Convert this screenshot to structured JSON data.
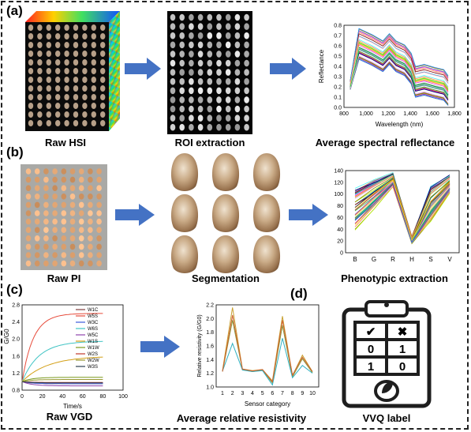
{
  "panels": {
    "a": "(a)",
    "b": "(b)",
    "c": "(c)",
    "d": "(d)"
  },
  "captions": {
    "raw_hsi": "Raw HSI",
    "roi_extraction": "ROI extraction",
    "avg_spectral": "Average spectral reflectance",
    "raw_pi": "Raw PI",
    "segmentation": "Segmentation",
    "phenotypic": "Phenotypic extraction",
    "raw_vgd": "Raw VGD",
    "avg_resistivity": "Average relative resistivity",
    "vvq_label": "VVQ label"
  },
  "spectral_chart": {
    "xlabel": "Wavelength (nm)",
    "ylabel": "Reflectance",
    "xticks": [
      "800",
      "1,000",
      "1,200",
      "1,400",
      "1,600",
      "1,800"
    ],
    "yticks": [
      "0.0",
      "0.1",
      "0.2",
      "0.3",
      "0.4",
      "0.5",
      "0.6",
      "0.7",
      "0.8"
    ]
  },
  "pheno_chart": {
    "xticks": [
      "B",
      "G",
      "R",
      "H",
      "S",
      "V"
    ],
    "yticks": [
      "0",
      "20",
      "40",
      "60",
      "80",
      "100",
      "120",
      "140"
    ]
  },
  "vgd_chart": {
    "xlabel": "Time/s",
    "ylabel": "G/G0",
    "xticks": [
      "0",
      "20",
      "40",
      "60",
      "80",
      "100"
    ],
    "yticks": [
      "0.8",
      "1.2",
      "1.6",
      "2.0",
      "2.4",
      "2.8"
    ],
    "legend": [
      "W1C",
      "W5S",
      "W3C",
      "W6S",
      "W5C",
      "W1S",
      "W1W",
      "W2S",
      "W2W",
      "W3S"
    ]
  },
  "resist_chart": {
    "xlabel": "Sensor category",
    "ylabel": "Relative resistivity (G/G0)",
    "xticks": [
      "1",
      "2",
      "3",
      "4",
      "5",
      "6",
      "7",
      "8",
      "9",
      "10"
    ],
    "yticks": [
      "1.0",
      "1.2",
      "1.4",
      "1.6",
      "1.8",
      "2.0",
      "2.2"
    ]
  },
  "clipboard": {
    "symbols": [
      "✔",
      "✖",
      "0",
      "1",
      "1",
      "0"
    ]
  },
  "colors": {
    "arrow": "#4472c4",
    "frame": "#222222"
  }
}
